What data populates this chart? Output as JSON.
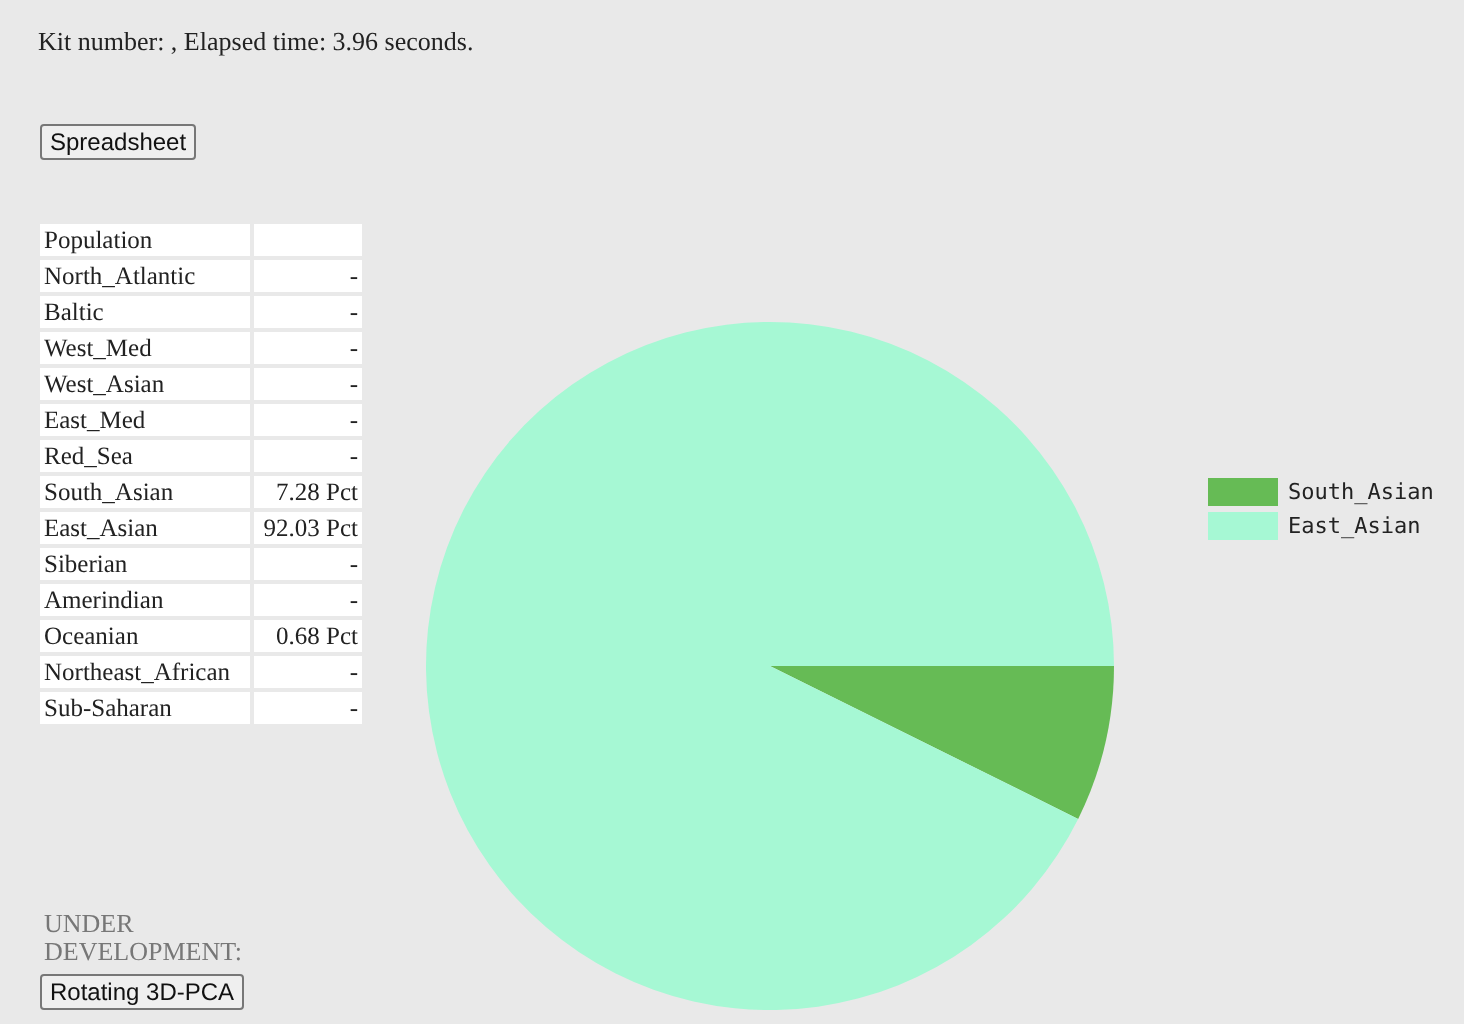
{
  "chart_data": [
    {
      "type": "other",
      "title": "Kit number: , Elapsed time: 3.96 seconds.",
      "xlabel": "Population",
      "categories": [
        "North_Atlantic",
        "Baltic",
        "West_Med",
        "West_Asian",
        "East_Med",
        "Red_Sea",
        "South_Asian",
        "East_Asian",
        "Siberian",
        "Amerindian",
        "Oceanian",
        "Northeast_African",
        "Sub-Saharan"
      ],
      "value_labels": [
        "-",
        "-",
        "-",
        "-",
        "-",
        "-",
        "7.28 Pct",
        "92.03 Pct",
        "-",
        "-",
        "0.68 Pct",
        "-",
        "-"
      ],
      "annotations": [
        "Spreadsheet",
        "UNDER DEVELOPMENT:",
        "Rotating 3D-PCA"
      ]
    },
    {
      "type": "pie",
      "categories": [
        "South_Asian",
        "East_Asian"
      ],
      "values": [
        7.28,
        92.03
      ],
      "colors": [
        "#66bb55",
        "#a6f8d4"
      ],
      "legend": "right"
    }
  ]
}
